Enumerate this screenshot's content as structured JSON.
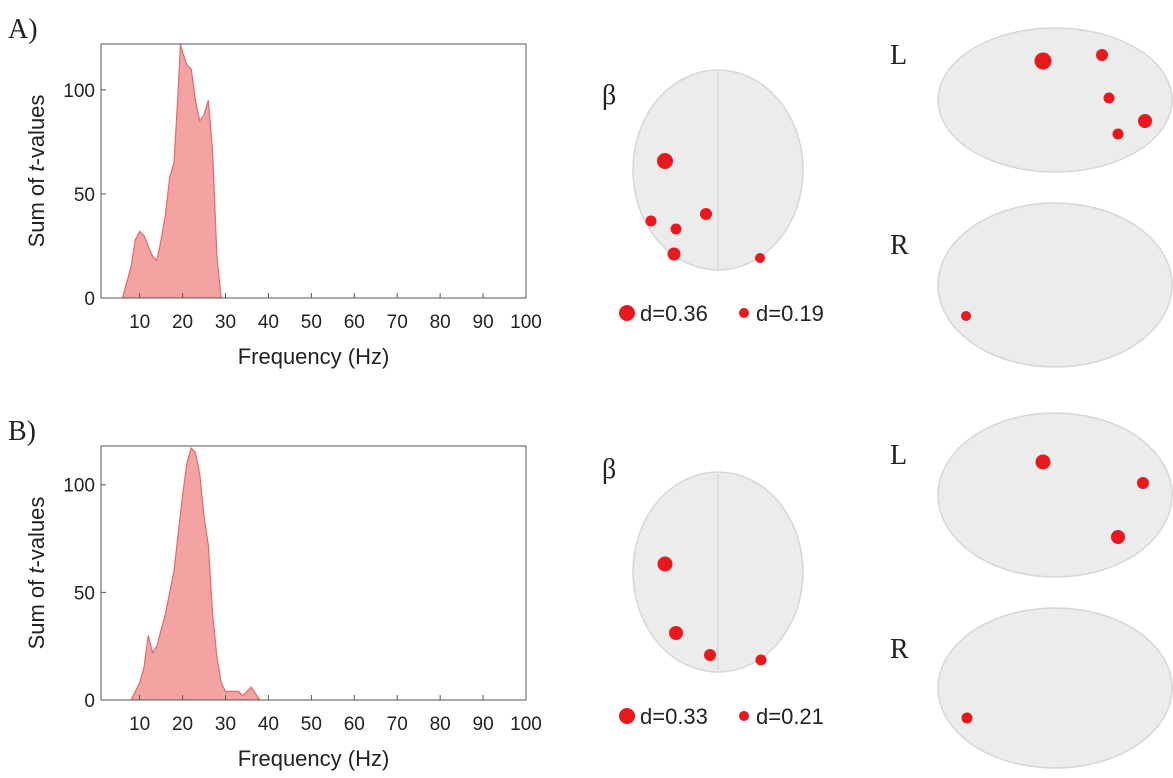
{
  "chart_data": [
    {
      "type": "area",
      "panel_label": "A)",
      "xlabel": "Frequency (Hz)",
      "ylabel_parts": [
        "Sum of ",
        "t",
        "-values"
      ],
      "x": [
        6,
        8,
        9,
        10,
        11,
        13,
        14,
        15,
        16,
        17,
        18,
        19,
        19.5,
        20,
        21,
        22,
        23,
        24,
        25,
        26,
        27,
        28,
        29
      ],
      "values": [
        0,
        15,
        28,
        32,
        30,
        20,
        18,
        28,
        40,
        58,
        65,
        100,
        122,
        118,
        112,
        110,
        95,
        85,
        88,
        95,
        70,
        20,
        0
      ],
      "color": "#f4a3a3",
      "line_color": "#e06a6a",
      "xlim": [
        1,
        100
      ],
      "xticks": [
        10,
        20,
        30,
        40,
        50,
        60,
        70,
        80,
        90,
        100
      ],
      "ylim": [
        0,
        122
      ],
      "yticks": [
        0,
        50,
        100
      ]
    },
    {
      "type": "area",
      "panel_label": "B)",
      "xlabel": "Frequency (Hz)",
      "ylabel_parts": [
        "Sum of ",
        "t",
        "-values"
      ],
      "x": [
        8,
        10,
        11,
        12,
        13,
        14,
        16,
        18,
        20,
        21,
        22,
        23,
        24,
        25,
        26,
        27,
        28,
        29,
        30,
        33,
        34,
        36,
        37,
        38
      ],
      "values": [
        0,
        8,
        15,
        30,
        22,
        25,
        40,
        60,
        95,
        110,
        117,
        115,
        105,
        85,
        72,
        40,
        20,
        8,
        4,
        4,
        2,
        6,
        3,
        0
      ],
      "color": "#f4a3a3",
      "line_color": "#e06a6a",
      "xlim": [
        1,
        100
      ],
      "xticks": [
        10,
        20,
        30,
        40,
        50,
        60,
        70,
        80,
        90,
        100
      ],
      "ylim": [
        0,
        118
      ],
      "yticks": [
        0,
        50,
        100
      ]
    }
  ],
  "brain_panels": [
    {
      "band": "β",
      "left": "L",
      "right": "R",
      "legend": [
        "d=0.36",
        "d=0.19"
      ]
    },
    {
      "band": "β",
      "left": "L",
      "right": "R",
      "legend": [
        "d=0.33",
        "d=0.21"
      ]
    }
  ]
}
